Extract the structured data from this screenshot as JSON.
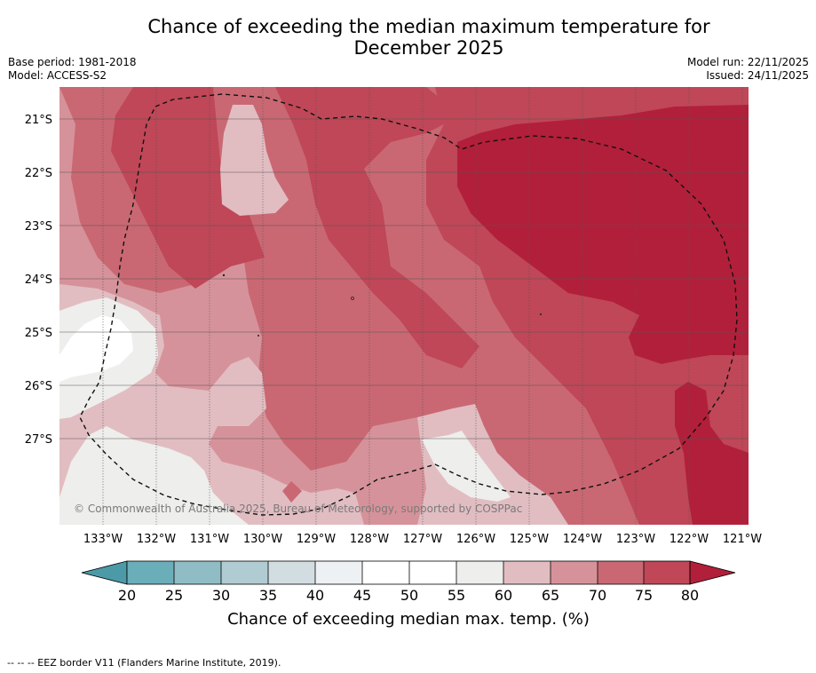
{
  "title_line1": "Chance of exceeding the median maximum temperature for",
  "title_line2": "December 2025",
  "meta": {
    "base_period": "Base period: 1981-2018",
    "model": "Model: ACCESS-S2",
    "model_run": "Model run: 22/11/2025",
    "issued": "Issued: 24/11/2025"
  },
  "map": {
    "latitudes": [
      "21°S",
      "22°S",
      "23°S",
      "24°S",
      "25°S",
      "26°S",
      "27°S"
    ],
    "longitudes": [
      "133°W",
      "132°W",
      "131°W",
      "130°W",
      "129°W",
      "128°W",
      "127°W",
      "126°W",
      "125°W",
      "124°W",
      "123°W",
      "122°W",
      "121°W"
    ],
    "copyright": "© Commonwealth of Australia 2025, Bureau of Meteorology, supported by COSPPac",
    "border_label": "EEZ border"
  },
  "colorbar": {
    "ticks": [
      "20",
      "25",
      "30",
      "35",
      "40",
      "45",
      "50",
      "55",
      "60",
      "65",
      "70",
      "75",
      "80"
    ],
    "title": "Chance of exceeding median max. temp. (%)",
    "colors": {
      "under": "#4c9aa8",
      "c20_25": "#6aaeb9",
      "c25_30": "#8fbcc5",
      "c30_35": "#b0ccd2",
      "c35_40": "#d2dde2",
      "c40_45": "#eef1f3",
      "c45_50": "#ffffff",
      "c50_55": "#ffffff",
      "c55_60": "#eeeeec",
      "c60_65": "#e1bdc2",
      "c65_70": "#d6929a",
      "c70_75": "#c96873",
      "c75_80": "#bf4757",
      "over": "#b21f3b"
    }
  },
  "footnote": "--  --  -- EEZ border V11 (Flanders Marine Institute, 2019)."
}
